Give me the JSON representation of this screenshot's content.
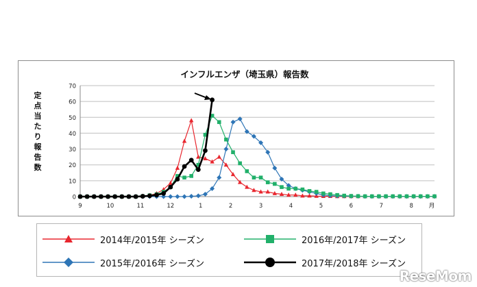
{
  "chart_data": {
    "type": "line",
    "title": "インフルエンザ（埼玉県）報告数",
    "ylabel": "定点当たり報告数",
    "xlabel": "",
    "ylim": [
      0,
      70
    ],
    "yticks": [
      0,
      10,
      20,
      30,
      40,
      50,
      60,
      70
    ],
    "xticks": [
      "9",
      "10",
      "11",
      "12",
      "1",
      "2",
      "3",
      "4",
      "5",
      "6",
      "7",
      "8",
      "月"
    ],
    "grid": true,
    "legend_position": "bottom",
    "series": [
      {
        "name": "2014年/2015年 シーズン",
        "color": "#e8262e",
        "marker": "triangle",
        "values": [
          0,
          0,
          0,
          0,
          0,
          0,
          0,
          0,
          0,
          0.3,
          0.8,
          2,
          4.5,
          8.5,
          18,
          35,
          48,
          25,
          24,
          22,
          25,
          20,
          14,
          9,
          6,
          4,
          3,
          3,
          2,
          1.5,
          1,
          1,
          0.5,
          0.5,
          0.3,
          0.2,
          0.2,
          0.1,
          0.1,
          0.1,
          0.1,
          0.1,
          0.1,
          0.1,
          0.1,
          0.1,
          0.1,
          0.1,
          0.1,
          0.1,
          0.1,
          0.1
        ]
      },
      {
        "name": "2015年/2016年 シーズン",
        "color": "#2e75b6",
        "marker": "diamond",
        "values": [
          0,
          0,
          0,
          0,
          0,
          0,
          0,
          0,
          0,
          0,
          0,
          0,
          0,
          0,
          0,
          0,
          0.2,
          0.5,
          1.5,
          5,
          12,
          30,
          47,
          49,
          41,
          38,
          34,
          28,
          18,
          11,
          7,
          5,
          4,
          3,
          2,
          1,
          0.6,
          0.4,
          0.3,
          0.2,
          0.2,
          0.1,
          0.1,
          0.1,
          0.1,
          0.1,
          0.1,
          0.1,
          0.1,
          0.1,
          0.1,
          0.1
        ]
      },
      {
        "name": "2016年/2017年 シーズン",
        "color": "#21b06a",
        "marker": "square",
        "values": [
          0,
          0,
          0,
          0,
          0,
          0,
          0,
          0,
          0,
          0.3,
          0.8,
          1.5,
          3,
          6,
          13,
          12,
          13,
          20,
          39,
          51,
          47,
          36,
          28,
          21,
          16,
          12,
          12,
          9,
          8,
          6,
          5,
          5,
          4.5,
          3.5,
          3,
          2,
          1.5,
          1,
          0.6,
          0.4,
          0.3,
          0.2,
          0.2,
          0.2,
          0.2,
          0.2,
          0.2,
          0.2,
          0.2,
          0.2,
          0.2,
          0.2
        ]
      },
      {
        "name": "2017年/2018年 シーズン",
        "color": "#000000",
        "marker": "circle",
        "values": [
          0,
          0,
          0,
          0,
          0,
          0,
          0,
          0,
          0,
          0.2,
          0.5,
          1,
          2,
          6,
          11,
          19,
          23,
          17,
          29,
          61
        ]
      }
    ]
  },
  "watermark": "ReseMom"
}
